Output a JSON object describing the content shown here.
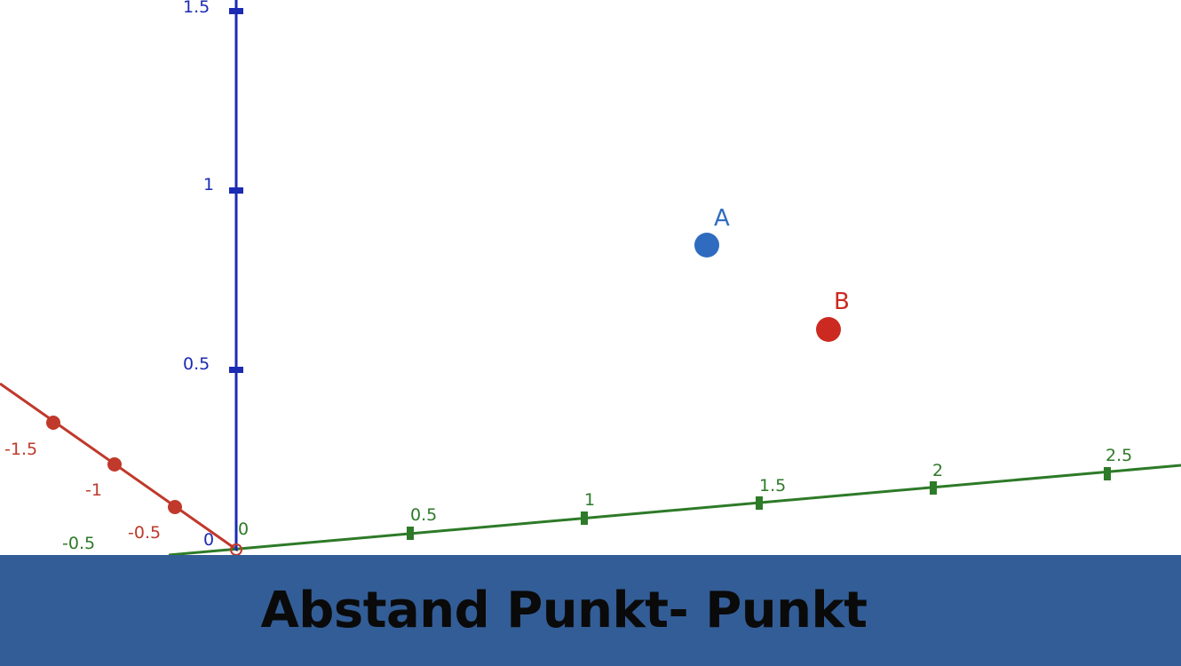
{
  "banner": {
    "title": "Abstand Punkt- Punkt"
  },
  "colors": {
    "z_axis": "#1b2bb4",
    "y_axis": "#2d7a28",
    "x_axis": "#c0392b",
    "point_a": "#2f6cc0",
    "point_b": "#cc2a20",
    "banner": "#335d96"
  },
  "axes": {
    "z": {
      "ticks": [
        "1.5",
        "1",
        "0.5"
      ]
    },
    "y": {
      "ticks": [
        "0.5",
        "1",
        "1.5",
        "2",
        "2.5"
      ]
    },
    "x": {
      "ticks": [
        "-1.5",
        "-1",
        "-0.5"
      ]
    },
    "origin_labels": [
      "0",
      "0",
      "-0.5"
    ]
  },
  "points": [
    {
      "label": "A"
    },
    {
      "label": "B"
    }
  ]
}
